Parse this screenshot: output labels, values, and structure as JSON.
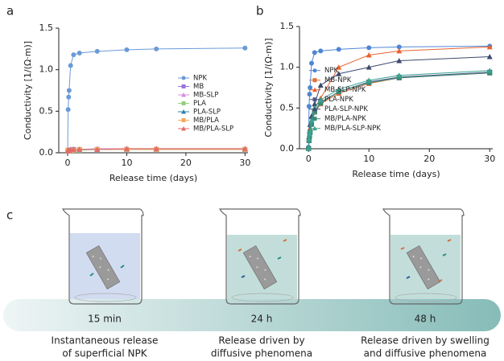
{
  "panels": [
    "a",
    "b",
    "c"
  ],
  "chart_data": [
    {
      "type": "line",
      "x": [
        0,
        0.083,
        0.167,
        0.25,
        0.5,
        1,
        2,
        5,
        10,
        15,
        30
      ],
      "xlim": [
        -1.5,
        30.5
      ],
      "ylim": [
        0,
        1.5
      ],
      "xticks": [
        0,
        10,
        20,
        30
      ],
      "yticks": [
        {
          "value": 0,
          "label": "0.0"
        },
        0.5,
        {
          "value": 1,
          "label": "1.0"
        },
        1.5
      ],
      "xlabel": "Release time (days)",
      "ylabel": "Conductivity [1/(Ω·m)]",
      "legend": "center right",
      "series": [
        {
          "name": "NPK",
          "color": "#6a9ad8",
          "marker": "circle",
          "values": [
            0.02,
            0.52,
            0.67,
            0.75,
            1.05,
            1.18,
            1.2,
            1.22,
            1.24,
            1.25,
            1.26
          ]
        },
        {
          "name": "MB",
          "color": "#9c72d9",
          "marker": "square",
          "values": [
            0.02,
            0.03,
            0.03,
            0.03,
            0.03,
            0.04,
            0.04,
            0.04,
            0.04,
            0.04,
            0.04
          ]
        },
        {
          "name": "MB-SLP",
          "color": "#d58ee0",
          "marker": "triangle",
          "values": [
            0.02,
            0.03,
            0.03,
            0.03,
            0.04,
            0.04,
            0.04,
            0.05,
            0.05,
            0.05,
            0.05
          ]
        },
        {
          "name": "PLA",
          "color": "#92d07c",
          "marker": "square",
          "values": [
            0.02,
            0.02,
            0.03,
            0.03,
            0.03,
            0.03,
            0.03,
            0.04,
            0.04,
            0.04,
            0.04
          ]
        },
        {
          "name": "PLA-SLP",
          "color": "#2f80a8",
          "marker": "triangle",
          "values": [
            0.02,
            0.03,
            0.03,
            0.03,
            0.03,
            0.04,
            0.04,
            0.04,
            0.04,
            0.04,
            0.04
          ]
        },
        {
          "name": "MB/PLA",
          "color": "#f5a85c",
          "marker": "square",
          "values": [
            0.02,
            0.02,
            0.03,
            0.03,
            0.03,
            0.03,
            0.04,
            0.04,
            0.04,
            0.04,
            0.04
          ]
        },
        {
          "name": "MB/PLA-SLP",
          "color": "#e06b6b",
          "marker": "triangle",
          "values": [
            0.02,
            0.03,
            0.03,
            0.03,
            0.04,
            0.04,
            0.04,
            0.04,
            0.05,
            0.05,
            0.05
          ]
        }
      ]
    },
    {
      "type": "line",
      "x": [
        0,
        0.083,
        0.167,
        0.25,
        0.5,
        1,
        2,
        5,
        10,
        15,
        30
      ],
      "xlim": [
        -1.5,
        30.5
      ],
      "ylim": [
        0,
        1.5
      ],
      "xticks": [
        0,
        10,
        20,
        30
      ],
      "yticks": [
        {
          "value": 0,
          "label": "0.0"
        },
        0.5,
        {
          "value": 1,
          "label": "1.0"
        },
        1.5
      ],
      "xlabel": "Release time (days)",
      "ylabel": "Conductivity [1/(Ω·m)]",
      "legend": "center left",
      "series": [
        {
          "name": "NPK",
          "color": "#4f86d6",
          "marker": "circle",
          "values": [
            0.02,
            0.52,
            0.67,
            0.75,
            1.05,
            1.18,
            1.2,
            1.22,
            1.24,
            1.25,
            1.26
          ]
        },
        {
          "name": "MB-NPK",
          "color": "#e0703a",
          "marker": "square",
          "values": [
            0,
            0.1,
            0.15,
            0.2,
            0.3,
            0.45,
            0.55,
            0.68,
            0.8,
            0.87,
            0.93
          ]
        },
        {
          "name": "MB-SLP-NPK",
          "color": "#e8622f",
          "marker": "triangle",
          "values": [
            0,
            0.12,
            0.18,
            0.25,
            0.35,
            0.5,
            0.62,
            1.0,
            1.15,
            1.2,
            1.25
          ]
        },
        {
          "name": "PLA-NPK",
          "color": "#4a5888",
          "marker": "square",
          "values": [
            0,
            0.1,
            0.15,
            0.2,
            0.3,
            0.46,
            0.57,
            0.7,
            0.82,
            0.88,
            0.94
          ]
        },
        {
          "name": "PLA-SLP-NPK",
          "color": "#3d4a6e",
          "marker": "triangle",
          "values": [
            0,
            0.15,
            0.22,
            0.3,
            0.4,
            0.55,
            0.78,
            0.92,
            1.0,
            1.08,
            1.13
          ]
        },
        {
          "name": "MB/PLA-NPK",
          "color": "#3a8a7a",
          "marker": "square",
          "values": [
            0,
            0.1,
            0.15,
            0.2,
            0.3,
            0.45,
            0.56,
            0.7,
            0.81,
            0.87,
            0.93
          ]
        },
        {
          "name": "MB/PLA-SLP-NPK",
          "color": "#3aa58f",
          "marker": "triangle",
          "values": [
            0,
            0.12,
            0.18,
            0.22,
            0.35,
            0.5,
            0.6,
            0.73,
            0.84,
            0.9,
            0.96
          ]
        }
      ]
    }
  ],
  "diagram": {
    "stages": [
      {
        "time": "15 min",
        "caption": [
          "Instantaneous release",
          "of superficial NPK"
        ]
      },
      {
        "time": "24 h",
        "caption": [
          "Release driven by",
          "diffusive phenomena"
        ]
      },
      {
        "time": "48 h",
        "caption": [
          "Release driven by swelling",
          "and diffusive phenomena"
        ]
      }
    ]
  }
}
